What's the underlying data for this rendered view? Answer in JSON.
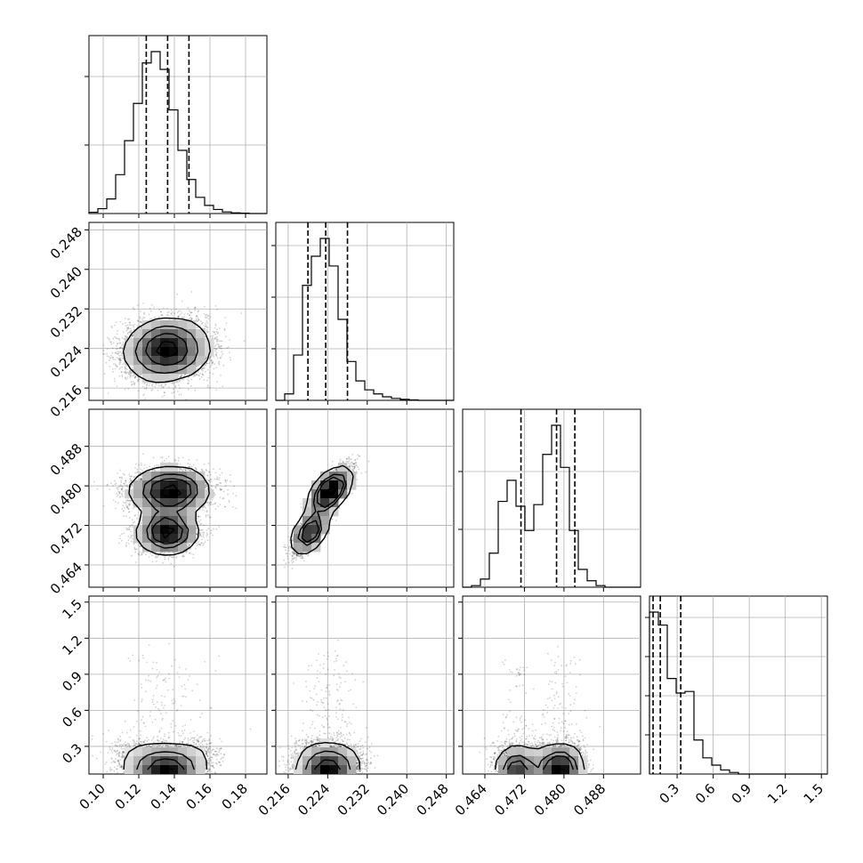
{
  "chart_data": {
    "type": "corner",
    "grid": true,
    "params": [
      {
        "range": [
          0.092,
          0.192
        ],
        "ticks": [
          0.1,
          0.12,
          0.14,
          0.16,
          0.18
        ],
        "tick_labels": [
          "0.10",
          "0.12",
          "0.14",
          "0.16",
          "0.18"
        ],
        "quantiles": [
          0.1242,
          0.1362,
          0.1482
        ],
        "hist": {
          "edges_start": 0.092,
          "bin_width": 0.005,
          "density": [
            0.008,
            0.03,
            0.09,
            0.24,
            0.45,
            0.68,
            0.93,
            1.0,
            0.89,
            0.64,
            0.39,
            0.21,
            0.1,
            0.05,
            0.025,
            0.01,
            0.004,
            0.002,
            0.0,
            0.0
          ]
        },
        "hist_tick_fractions": [
          0.385,
          0.77
        ]
      },
      {
        "range": [
          0.2135,
          0.2495
        ],
        "ticks": [
          0.216,
          0.224,
          0.232,
          0.24,
          0.248
        ],
        "tick_labels": [
          "0.216",
          "0.224",
          "0.232",
          "0.240",
          "0.248"
        ],
        "quantiles": [
          0.22,
          0.2236,
          0.228
        ],
        "hist": {
          "edges_start": 0.2135,
          "bin_width": 0.0018,
          "density": [
            0.0,
            0.04,
            0.28,
            0.71,
            0.89,
            1.0,
            0.83,
            0.5,
            0.24,
            0.12,
            0.065,
            0.04,
            0.022,
            0.012,
            0.006,
            0.003,
            0.0,
            0.0,
            0.0,
            0.0
          ]
        },
        "hist_tick_fractions": [
          0.29,
          0.58,
          0.87
        ]
      },
      {
        "range": [
          0.4595,
          0.4955
        ],
        "ticks": [
          0.464,
          0.472,
          0.48,
          0.488
        ],
        "tick_labels": [
          "0.464",
          "0.472",
          "0.480",
          "0.488"
        ],
        "quantiles": [
          0.4713,
          0.4785,
          0.4822
        ],
        "hist": {
          "edges_start": 0.4595,
          "bin_width": 0.0018,
          "density": [
            0.0,
            0.01,
            0.05,
            0.21,
            0.53,
            0.66,
            0.5,
            0.35,
            0.51,
            0.82,
            1.0,
            0.74,
            0.35,
            0.11,
            0.04,
            0.01,
            0.0,
            0.0,
            0.0,
            0.0
          ]
        },
        "hist_tick_fractions": [
          0.325,
          0.65
        ]
      },
      {
        "range": [
          0.07,
          1.55
        ],
        "ticks": [
          0.3,
          0.6,
          0.9,
          1.2,
          1.5
        ],
        "tick_labels": [
          "0.3",
          "0.6",
          "0.9",
          "1.2",
          "1.5"
        ],
        "y_ticks": [
          0.3,
          0.6,
          0.9,
          1.2,
          1.5
        ],
        "y_tick_labels": [
          "0.3",
          "0.6",
          "0.9",
          "1.2",
          "1.5"
        ],
        "quantiles": [
          0.1,
          0.16,
          0.33
        ],
        "hist": {
          "edges_start": 0.07,
          "bin_width": 0.074,
          "density": [
            1.0,
            0.92,
            0.59,
            0.5,
            0.51,
            0.21,
            0.1,
            0.055,
            0.025,
            0.01,
            0.0,
            0.0,
            0.0,
            0.0,
            0.0,
            0.0,
            0.0,
            0.0,
            0.0,
            0.0
          ]
        },
        "hist_tick_fractions": [
          0.22,
          0.44,
          0.66,
          0.88
        ]
      }
    ],
    "pairs": [
      {
        "row": 1,
        "col": 0,
        "modes": [
          {
            "mx": 0.136,
            "my": 0.2238,
            "sx": 0.0115,
            "sy": 0.0029,
            "rho": 0.1,
            "w": 1.0
          }
        ]
      },
      {
        "row": 2,
        "col": 0,
        "modes": [
          {
            "mx": 0.137,
            "my": 0.479,
            "sx": 0.0115,
            "sy": 0.0022,
            "rho": 0.0,
            "w": 0.6
          },
          {
            "mx": 0.136,
            "my": 0.4705,
            "sx": 0.0085,
            "sy": 0.002,
            "rho": 0.0,
            "w": 0.4
          }
        ]
      },
      {
        "row": 2,
        "col": 1,
        "modes": [
          {
            "mx": 0.2245,
            "my": 0.479,
            "sx": 0.002,
            "sy": 0.0022,
            "rho": 0.75,
            "w": 0.6
          },
          {
            "mx": 0.2203,
            "my": 0.4705,
            "sx": 0.0016,
            "sy": 0.002,
            "rho": 0.7,
            "w": 0.4
          }
        ]
      },
      {
        "row": 3,
        "col": 0,
        "modes": [
          {
            "mx": 0.135,
            "my": 0.17,
            "sx": 0.011,
            "sy": 0.08,
            "rho": 0.5,
            "w": 1.0,
            "skew": true
          }
        ]
      },
      {
        "row": 3,
        "col": 1,
        "modes": [
          {
            "mx": 0.224,
            "my": 0.17,
            "sx": 0.0029,
            "sy": 0.08,
            "rho": 0.3,
            "w": 1.0,
            "skew": true
          }
        ]
      },
      {
        "row": 3,
        "col": 2,
        "modes": [
          {
            "mx": 0.4705,
            "my": 0.17,
            "sx": 0.002,
            "sy": 0.08,
            "rho": 0.3,
            "w": 0.4,
            "skew": true
          },
          {
            "mx": 0.479,
            "my": 0.17,
            "sx": 0.0022,
            "sy": 0.08,
            "rho": 0.3,
            "w": 0.6,
            "skew": true
          }
        ]
      }
    ],
    "n_samples": 6000
  }
}
